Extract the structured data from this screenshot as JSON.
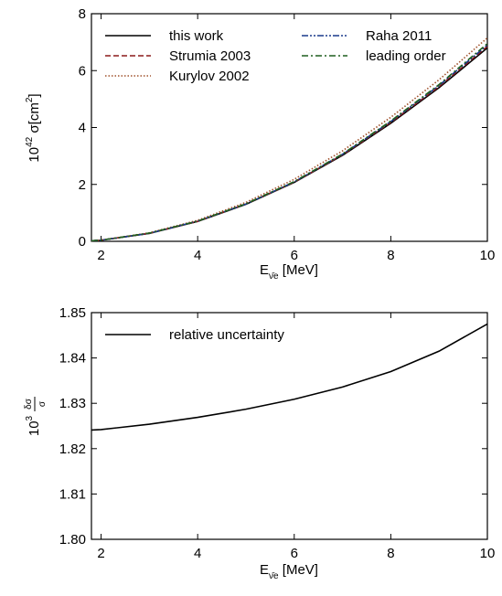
{
  "chart_data": [
    {
      "type": "line",
      "ylabel": {
        "prefix": "10",
        "exp": "42",
        "main": " σ[cm",
        "unit_exp": "2",
        "end": "]"
      },
      "xlabel": {
        "main": "E",
        "sub": "ν̄e",
        "unit": " [MeV]"
      },
      "x": [
        1.8,
        2,
        3,
        4,
        5,
        6,
        7,
        8,
        9,
        10
      ],
      "xlim": [
        1.8,
        10
      ],
      "xticks": [
        2,
        4,
        6,
        8,
        10
      ],
      "ylim": [
        0,
        8
      ],
      "yticks": [
        0,
        2,
        4,
        6,
        8
      ],
      "series": [
        {
          "name": "this work",
          "color": "#000000",
          "dash": "solid",
          "values": [
            0.02,
            0.04,
            0.28,
            0.7,
            1.3,
            2.07,
            3.02,
            4.15,
            5.4,
            6.8
          ]
        },
        {
          "name": "Strumia 2003",
          "color": "#8b1a1a",
          "dash": "dashed",
          "values": [
            0.02,
            0.04,
            0.28,
            0.7,
            1.31,
            2.08,
            3.04,
            4.18,
            5.44,
            6.85
          ]
        },
        {
          "name": "Kurylov 2002",
          "color": "#a0522d",
          "dash": "dotted",
          "values": [
            0.02,
            0.04,
            0.3,
            0.74,
            1.37,
            2.18,
            3.18,
            4.36,
            5.68,
            7.15
          ]
        },
        {
          "name": "Raha 2011",
          "color": "#1a3a8b",
          "dash": "dashdotdot",
          "values": [
            0.02,
            0.04,
            0.28,
            0.71,
            1.31,
            2.09,
            3.06,
            4.21,
            5.48,
            6.9
          ]
        },
        {
          "name": "leading order",
          "color": "#1f5f1f",
          "dash": "dashdot",
          "values": [
            0.02,
            0.04,
            0.29,
            0.71,
            1.32,
            2.1,
            3.07,
            4.23,
            5.51,
            6.95
          ]
        }
      ]
    },
    {
      "type": "line",
      "ylabel": {
        "prefix": "10",
        "exp": "3",
        "num": "δσ",
        "den": "σ"
      },
      "xlabel": {
        "main": "E",
        "sub": "ν̄e",
        "unit": " [MeV]"
      },
      "x": [
        1.8,
        2,
        3,
        4,
        5,
        6,
        7,
        8,
        9,
        10
      ],
      "xlim": [
        1.8,
        10
      ],
      "xticks": [
        2,
        4,
        6,
        8,
        10
      ],
      "ylim": [
        1.8,
        1.85
      ],
      "yticks": [
        {
          "value": 1.8,
          "label": "1.80"
        },
        1.81,
        1.82,
        1.83,
        1.84,
        1.85
      ],
      "series": [
        {
          "name": "relative uncertainty",
          "color": "#000000",
          "dash": "solid",
          "values": [
            1.8241,
            1.8242,
            1.8254,
            1.8269,
            1.8287,
            1.8309,
            1.8336,
            1.837,
            1.8415,
            1.8475
          ]
        }
      ]
    }
  ]
}
